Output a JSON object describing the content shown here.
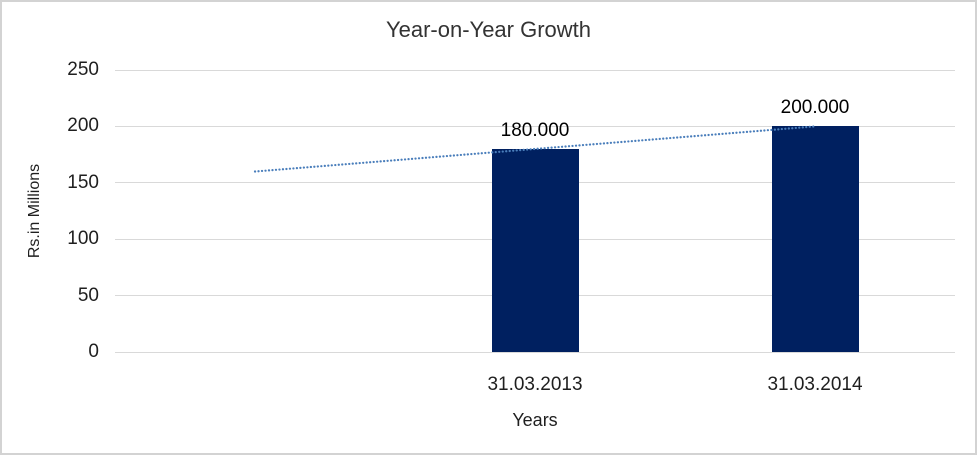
{
  "chart_data": {
    "type": "bar",
    "title": "Year-on-Year Growth",
    "categories": [
      "31.03.2013",
      "31.03.2014"
    ],
    "values": [
      180,
      200
    ],
    "data_labels": [
      "180.000",
      "200.000"
    ],
    "xlabel": "Years",
    "ylabel": "Rs.in Millions",
    "ylim": [
      0,
      250
    ],
    "yticks": [
      0,
      50,
      100,
      150,
      200,
      250
    ],
    "grid": "horizontal-light-gray",
    "legend": "none",
    "bar_color": "#002060",
    "gridline_color": "#d9d9d9",
    "frame_color": "#d3d3d3",
    "trendline": {
      "type": "linear",
      "style": "dotted",
      "color": "#4A7EBB",
      "from_value": 160,
      "to_value": 200,
      "note": "dotted trendline extending one category-width left of first bar"
    }
  }
}
